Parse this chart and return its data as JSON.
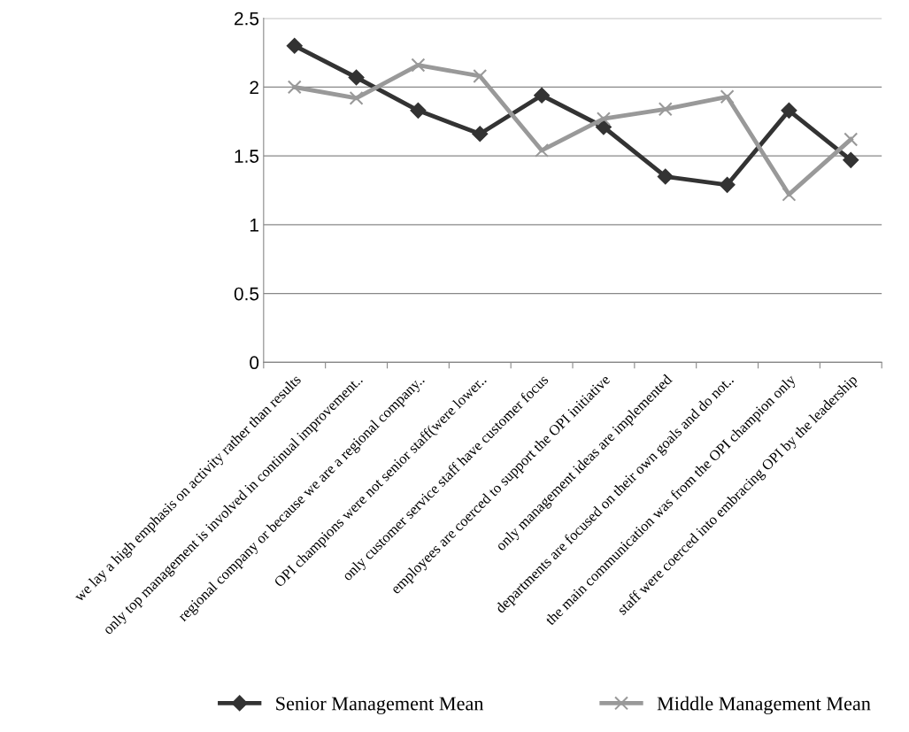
{
  "chart_data": {
    "type": "line",
    "categories": [
      "we lay a high emphasis on activity rather than results",
      "only top management is involved in continual improvement..",
      "regional company or because we are a regional company..",
      "OPI champions were not senior staff(were lower..",
      "only customer service staff have customer focus",
      "employees are coerced to support the OPI initiative",
      "only management ideas are implemented",
      "departments are focused on their own goals and do not..",
      "the main communication was from the OPI champion only",
      "staff were coerced into embracing OPI by the leadership"
    ],
    "series": [
      {
        "name": "Senior Management Mean",
        "color": "#333333",
        "marker": "diamond",
        "values": [
          2.3,
          2.07,
          1.83,
          1.66,
          1.94,
          1.71,
          1.35,
          1.29,
          1.83,
          1.47
        ]
      },
      {
        "name": "Middle Management Mean",
        "color": "#999999",
        "marker": "cross",
        "values": [
          2.0,
          1.92,
          2.16,
          2.08,
          1.54,
          1.77,
          1.84,
          1.93,
          1.22,
          1.62
        ]
      }
    ],
    "ylim": [
      0,
      2.5
    ],
    "yticks": [
      0,
      0.5,
      1,
      1.5,
      2,
      2.5
    ],
    "grid": "y",
    "legend": "bottom",
    "line_style": "solid"
  }
}
